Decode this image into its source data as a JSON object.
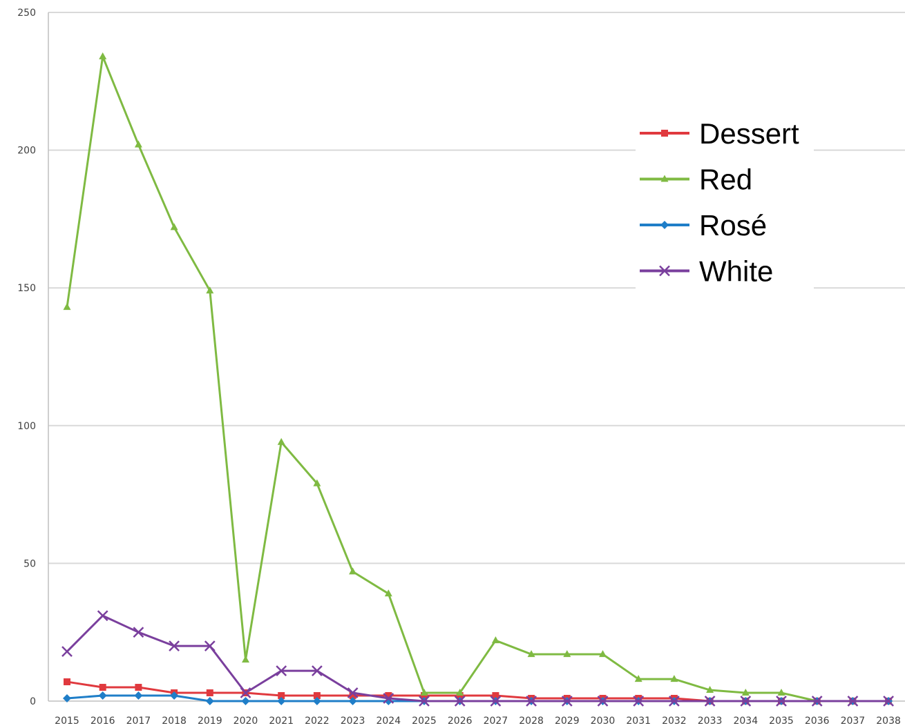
{
  "chart_data": {
    "type": "line",
    "title": "",
    "xlabel": "",
    "ylabel": "",
    "ylim": [
      0,
      250
    ],
    "yticks": [
      "0",
      "50",
      "100",
      "150",
      "200",
      "250"
    ],
    "grid": "horizontal",
    "legend_position": "upper-right",
    "categories": [
      "2015",
      "2016",
      "2017",
      "2018",
      "2019",
      "2020",
      "2021",
      "2022",
      "2023",
      "2024",
      "2025",
      "2026",
      "2027",
      "2028",
      "2029",
      "2030",
      "2031",
      "2032",
      "2033",
      "2034",
      "2035",
      "2036",
      "2037",
      "2038"
    ],
    "series": [
      {
        "name": "Dessert",
        "color": "#e0393e",
        "marker": "square",
        "values": [
          7,
          5,
          5,
          3,
          3,
          3,
          2,
          2,
          2,
          2,
          2,
          2,
          2,
          1,
          1,
          1,
          1,
          1,
          0,
          0,
          0,
          0,
          0,
          0
        ]
      },
      {
        "name": "Red",
        "color": "#7fba42",
        "marker": "triangle",
        "values": [
          143,
          234,
          202,
          172,
          149,
          15,
          94,
          79,
          47,
          39,
          3,
          3,
          22,
          17,
          17,
          17,
          8,
          8,
          4,
          3,
          3,
          0,
          0,
          0
        ]
      },
      {
        "name": "Rosé",
        "color": "#1f7ec8",
        "marker": "diamond",
        "values": [
          1,
          2,
          2,
          2,
          0,
          0,
          0,
          0,
          0,
          0,
          0,
          0,
          0,
          0,
          0,
          0,
          0,
          0,
          0,
          0,
          0,
          0,
          0,
          0
        ]
      },
      {
        "name": "White",
        "color": "#7a3f9d",
        "marker": "cross",
        "values": [
          18,
          31,
          25,
          20,
          20,
          3,
          11,
          11,
          3,
          1,
          0,
          0,
          0,
          0,
          0,
          0,
          0,
          0,
          0,
          0,
          0,
          0,
          0,
          0
        ]
      }
    ]
  }
}
